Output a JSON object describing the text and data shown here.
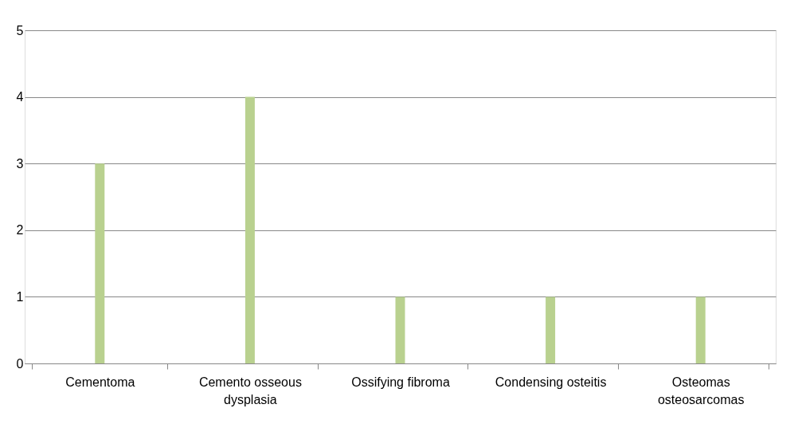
{
  "chart_data": {
    "type": "bar",
    "categories": [
      "Cementoma",
      "Cemento osseous dysplasia",
      "Ossifying fibroma",
      "Condensing osteitis",
      "Osteomas osteosarcomas"
    ],
    "values": [
      3,
      4,
      1,
      1,
      1
    ],
    "color": "#b9d18f",
    "ylim": [
      0,
      5
    ],
    "yticks": [
      0,
      1,
      2,
      3,
      4,
      5
    ],
    "grid": "y"
  }
}
